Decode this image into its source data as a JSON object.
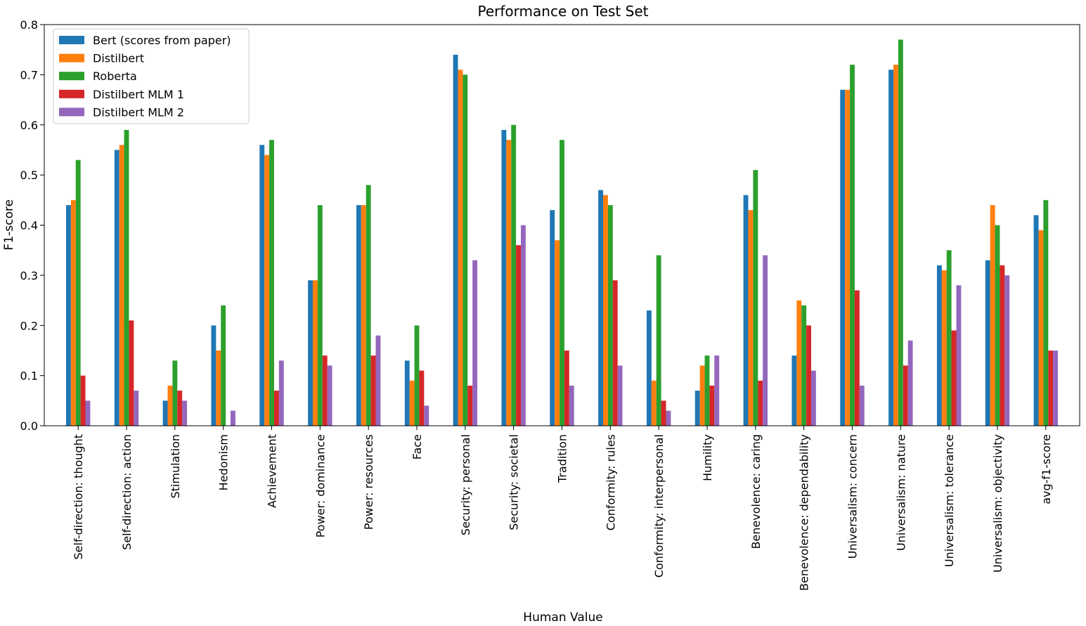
{
  "chart_data": {
    "type": "bar",
    "title": "Performance on Test Set",
    "xlabel": "Human Value",
    "ylabel": "F1-score",
    "ylim": [
      0,
      0.8
    ],
    "yticks": [
      "0.0",
      "0.1",
      "0.2",
      "0.3",
      "0.4",
      "0.5",
      "0.6",
      "0.7",
      "0.8"
    ],
    "grid": false,
    "legend_position": "top-left",
    "categories": [
      "Self-direction: thought",
      "Self-direction: action",
      "Stimulation",
      "Hedonism",
      "Achievement",
      "Power: dominance",
      "Power: resources",
      "Face",
      "Security: personal",
      "Security: societal",
      "Tradition",
      "Conformity: rules",
      "Conformity: interpersonal",
      "Humility",
      "Benevolence: caring",
      "Benevolence: dependability",
      "Universalism: concern",
      "Universalism: nature",
      "Universalism: tolerance",
      "Universalism: objectivity",
      "avg-f1-score"
    ],
    "series": [
      {
        "name": "Bert (scores from paper)",
        "color": "#1f77b4",
        "values": [
          0.44,
          0.55,
          0.05,
          0.2,
          0.56,
          0.29,
          0.44,
          0.13,
          0.74,
          0.59,
          0.43,
          0.47,
          0.23,
          0.07,
          0.46,
          0.14,
          0.67,
          0.71,
          0.32,
          0.33,
          0.42
        ]
      },
      {
        "name": "Distilbert",
        "color": "#ff7f0e",
        "values": [
          0.45,
          0.56,
          0.08,
          0.15,
          0.54,
          0.29,
          0.44,
          0.09,
          0.71,
          0.57,
          0.37,
          0.46,
          0.09,
          0.12,
          0.43,
          0.25,
          0.67,
          0.72,
          0.31,
          0.44,
          0.39
        ]
      },
      {
        "name": "Roberta",
        "color": "#2ca02c",
        "values": [
          0.53,
          0.59,
          0.13,
          0.24,
          0.57,
          0.44,
          0.48,
          0.2,
          0.7,
          0.6,
          0.57,
          0.44,
          0.34,
          0.14,
          0.51,
          0.24,
          0.72,
          0.77,
          0.35,
          0.4,
          0.45
        ]
      },
      {
        "name": "Distilbert MLM 1",
        "color": "#d62728",
        "values": [
          0.1,
          0.21,
          0.07,
          0.0,
          0.07,
          0.14,
          0.14,
          0.11,
          0.08,
          0.36,
          0.15,
          0.29,
          0.05,
          0.08,
          0.09,
          0.2,
          0.27,
          0.12,
          0.19,
          0.32,
          0.15
        ]
      },
      {
        "name": "Distilbert MLM 2",
        "color": "#9467bd",
        "values": [
          0.05,
          0.07,
          0.05,
          0.03,
          0.13,
          0.12,
          0.18,
          0.04,
          0.33,
          0.4,
          0.08,
          0.12,
          0.03,
          0.14,
          0.34,
          0.11,
          0.08,
          0.17,
          0.28,
          0.3,
          0.15
        ]
      }
    ]
  }
}
